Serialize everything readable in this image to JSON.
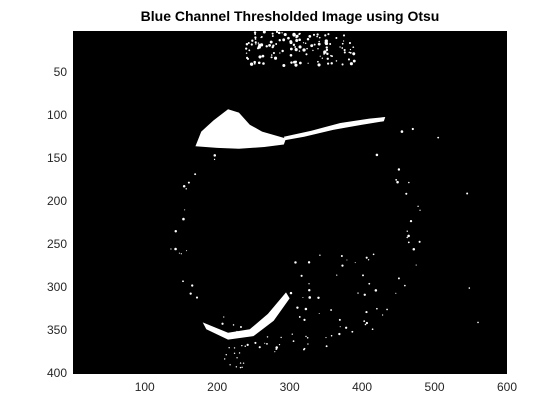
{
  "figure": {
    "title": "Blue Channel Thresholded Image using Otsu"
  },
  "axes": {
    "x_ticks": [
      "100",
      "200",
      "300",
      "400",
      "500",
      "600"
    ],
    "y_ticks": [
      "50",
      "100",
      "150",
      "200",
      "250",
      "300",
      "350",
      "400"
    ],
    "xlim": [
      1,
      600
    ],
    "ylim": [
      1,
      400
    ],
    "x_tick_values": [
      100,
      200,
      300,
      400,
      500,
      600
    ],
    "y_tick_values": [
      50,
      100,
      150,
      200,
      250,
      300,
      350,
      400
    ]
  },
  "image": {
    "content": "binary thresholded image",
    "background_color": "#000000",
    "foreground_color": "#ffffff"
  }
}
